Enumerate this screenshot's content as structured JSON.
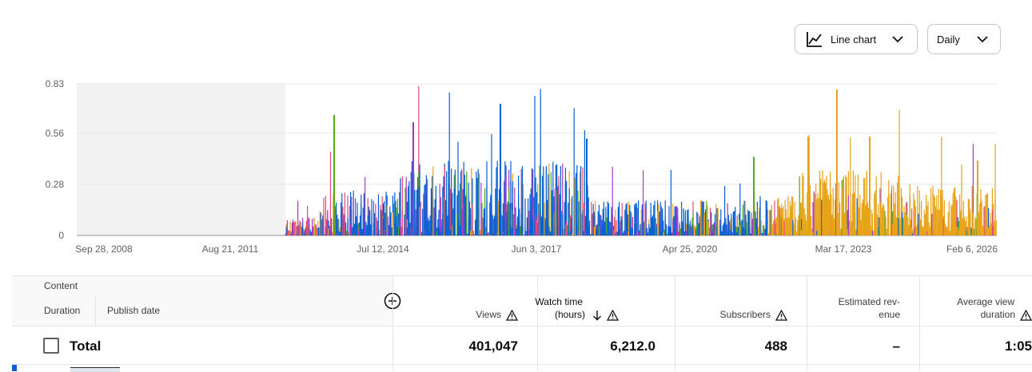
{
  "controls": {
    "chart_type_label": "Line chart",
    "granularity_label": "Daily"
  },
  "chart_data": {
    "type": "bar",
    "title": "",
    "xlabel": "",
    "ylabel": "",
    "y_ticks": [
      "0.83",
      "0.56",
      "0.28",
      "0"
    ],
    "x_ticks": [
      "Sep 28, 2008",
      "Aug 21, 2011",
      "Jul 12, 2014",
      "Jun 3, 2017",
      "Apr 25, 2020",
      "Mar 17, 2023",
      "Feb 6, 2026"
    ],
    "ylim": [
      0,
      0.83
    ],
    "grid": true,
    "shaded_region": [
      "Sep 28, 2008",
      "Nov 2012"
    ],
    "series_colors": [
      "#065fd4",
      "#e8a317",
      "#56a916",
      "#a638c7",
      "#e44a7a"
    ]
  },
  "table": {
    "content_header": "Content",
    "duration_header": "Duration",
    "publish_header": "Publish date",
    "columns": [
      {
        "line1": "",
        "line2": "Views"
      },
      {
        "line1": "Watch time",
        "line2": "(hours)"
      },
      {
        "line1": "",
        "line2": "Subscribers"
      },
      {
        "line1": "Estimated rev-",
        "line2": "enue"
      },
      {
        "line1": "Average view",
        "line2": "duration"
      }
    ],
    "total_label": "Total",
    "totals": [
      "401,047",
      "6,212.0",
      "488",
      "–",
      "1:05"
    ]
  },
  "colors": {
    "accent": "#065fd4",
    "grid": "#e5e5e5",
    "shade": "#f2f2f2"
  }
}
